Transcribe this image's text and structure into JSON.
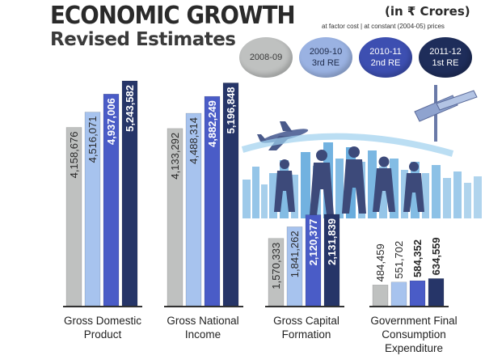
{
  "header": {
    "title": "ECONOMIC GROWTH",
    "subtitle": "Revised Estimates",
    "units": "(in ₹ Crores)",
    "basis": "at factor cost | at constant (2004-05) prices"
  },
  "legend": [
    {
      "line1": "2008-09",
      "line2": "",
      "color": "#bfc1c0",
      "text_color": "#3a3a3a"
    },
    {
      "line1": "2009-10",
      "line2": "3rd RE",
      "color": "#9ab2e2",
      "text_color": "#1e2a4a"
    },
    {
      "line1": "2010-11",
      "line2": "2nd RE",
      "color": "#3d4fb1",
      "text_color": "#ffffff"
    },
    {
      "line1": "2011-12",
      "line2": "1st RE",
      "color": "#1e2d5a",
      "text_color": "#ffffff"
    }
  ],
  "colors": {
    "bar_2008_09": "#bfc1c0",
    "bar_2009_10": "#a7c3ee",
    "bar_2010_11": "#4a5cc7",
    "bar_2011_12": "#263568",
    "baseline": "#333333",
    "skyline_blue": "#4f9fd8",
    "figure_dark": "#3d4a7a"
  },
  "decorations": {
    "illustration": "city-skyline-airplane-signpost-people-silhouettes"
  },
  "chart_data": {
    "type": "bar",
    "categories": [
      "Gross Domestic Product",
      "Gross National Income",
      "Gross Capital Formation",
      "Government Final Consumption Expenditure"
    ],
    "category_lines": [
      [
        "Gross Domestic",
        "Product"
      ],
      [
        "Gross National",
        "Income"
      ],
      [
        "Gross Capital",
        "Formation"
      ],
      [
        "Government Final",
        "Consumption",
        "Expenditure"
      ]
    ],
    "series": [
      {
        "name": "2008-09",
        "values": [
          4158676,
          4133292,
          1570333,
          484459
        ],
        "labels": [
          "4,158,676",
          "4,133,292",
          "1,570,333",
          "484,459"
        ]
      },
      {
        "name": "2009-10 3rd RE",
        "values": [
          4516071,
          4488314,
          1841262,
          551702
        ],
        "labels": [
          "4,516,071",
          "4,488,314",
          "1,841,262",
          "551,702"
        ]
      },
      {
        "name": "2010-11 2nd RE",
        "values": [
          4937006,
          4882249,
          2120377,
          584352
        ],
        "labels": [
          "4,937,006",
          "4,882,249",
          "2,120,377",
          "584,352"
        ]
      },
      {
        "name": "2011-12 1st RE",
        "values": [
          5243582,
          5196848,
          2131839,
          634559
        ],
        "labels": [
          "5,243,582",
          "5,196,848",
          "2,131,839",
          "634,559"
        ]
      }
    ],
    "label_bold": [
      false,
      false,
      true,
      true
    ],
    "ylim": [
      0,
      5500000
    ],
    "grid": false,
    "legend_position": "top-right",
    "title": "ECONOMIC GROWTH",
    "xlabel": "",
    "ylabel": ""
  }
}
